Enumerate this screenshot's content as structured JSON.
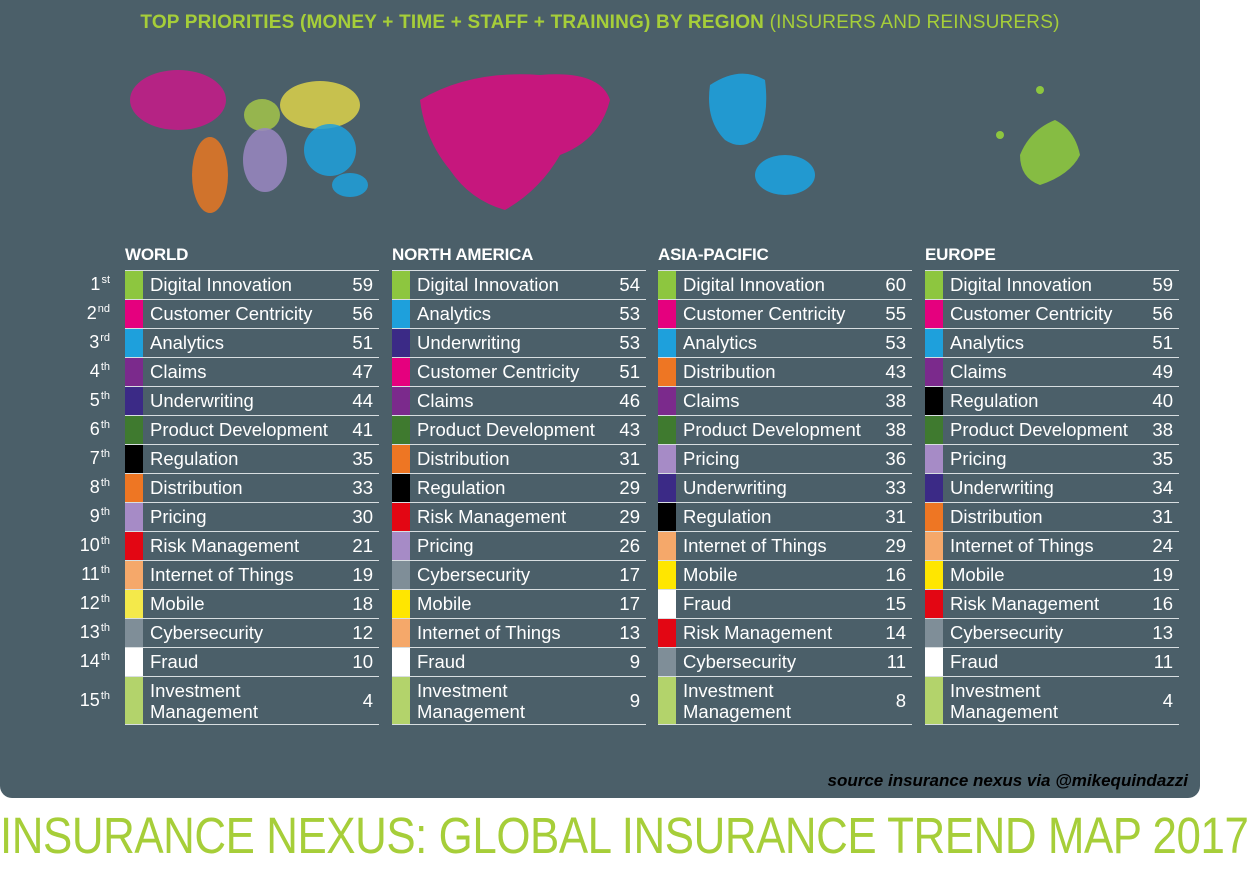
{
  "header": {
    "title_strong": "TOP PRIORITIES (MONEY + TIME + STAFF + TRAINING) BY REGION",
    "title_light": "(INSURERS AND REINSURERS)"
  },
  "colors": {
    "background_panel": "#4b5f69",
    "accent_green": "#a6ce39",
    "world_map_colors": [
      "#c8198a",
      "#e87722",
      "#a3c44a",
      "#ddd24a",
      "#9a87c2",
      "#1ea0dc"
    ],
    "north_america_map": "#d4107f",
    "asia_pacific_map": "#1ea0dc",
    "europe_map": "#8dc63f"
  },
  "ranks": [
    {
      "n": "1",
      "suffix": "st"
    },
    {
      "n": "2",
      "suffix": "nd"
    },
    {
      "n": "3",
      "suffix": "rd"
    },
    {
      "n": "4",
      "suffix": "th"
    },
    {
      "n": "5",
      "suffix": "th"
    },
    {
      "n": "6",
      "suffix": "th"
    },
    {
      "n": "7",
      "suffix": "th"
    },
    {
      "n": "8",
      "suffix": "th"
    },
    {
      "n": "9",
      "suffix": "th"
    },
    {
      "n": "10",
      "suffix": "th"
    },
    {
      "n": "11",
      "suffix": "th"
    },
    {
      "n": "12",
      "suffix": "th"
    },
    {
      "n": "13",
      "suffix": "th"
    },
    {
      "n": "14",
      "suffix": "th"
    },
    {
      "n": "15",
      "suffix": "th"
    }
  ],
  "regions": [
    {
      "name": "WORLD",
      "rows": [
        {
          "label": "Digital Innovation",
          "score": "59",
          "color": "#8dc63f"
        },
        {
          "label": "Customer Centricity",
          "score": "56",
          "color": "#e5007e"
        },
        {
          "label": "Analytics",
          "score": "51",
          "color": "#1ea0dc"
        },
        {
          "label": "Claims",
          "score": "47",
          "color": "#7b2a8c"
        },
        {
          "label": "Underwriting",
          "score": "44",
          "color": "#3b2a86"
        },
        {
          "label": "Product Development",
          "score": "41",
          "color": "#3f7a2f"
        },
        {
          "label": "Regulation",
          "score": "35",
          "color": "#000000"
        },
        {
          "label": "Distribution",
          "score": "33",
          "color": "#ee7623"
        },
        {
          "label": "Pricing",
          "score": "30",
          "color": "#a68bc6"
        },
        {
          "label": "Risk Management",
          "score": "21",
          "color": "#e30613"
        },
        {
          "label": "Internet of Things",
          "score": "19",
          "color": "#f5a86a"
        },
        {
          "label": "Mobile",
          "score": "18",
          "color": "#f4e94a"
        },
        {
          "label": "Cybersecurity",
          "score": "12",
          "color": "#7f8e98"
        },
        {
          "label": "Fraud",
          "score": "10",
          "color": "#ffffff"
        },
        {
          "label": "Investment Management",
          "score": "4",
          "color": "#b3d36b"
        }
      ]
    },
    {
      "name": "NORTH AMERICA",
      "rows": [
        {
          "label": "Digital Innovation",
          "score": "54",
          "color": "#8dc63f"
        },
        {
          "label": "Analytics",
          "score": "53",
          "color": "#1ea0dc"
        },
        {
          "label": "Underwriting",
          "score": "53",
          "color": "#3b2a86"
        },
        {
          "label": "Customer Centricity",
          "score": "51",
          "color": "#e5007e"
        },
        {
          "label": "Claims",
          "score": "46",
          "color": "#7b2a8c"
        },
        {
          "label": "Product Development",
          "score": "43",
          "color": "#3f7a2f"
        },
        {
          "label": "Distribution",
          "score": "31",
          "color": "#ee7623"
        },
        {
          "label": "Regulation",
          "score": "29",
          "color": "#000000"
        },
        {
          "label": "Risk Management",
          "score": "29",
          "color": "#e30613"
        },
        {
          "label": "Pricing",
          "score": "26",
          "color": "#a68bc6"
        },
        {
          "label": "Cybersecurity",
          "score": "17",
          "color": "#7f8e98"
        },
        {
          "label": "Mobile",
          "score": "17",
          "color": "#ffe600"
        },
        {
          "label": "Internet of Things",
          "score": "13",
          "color": "#f5a86a"
        },
        {
          "label": "Fraud",
          "score": "9",
          "color": "#ffffff"
        },
        {
          "label": "Investment Management",
          "score": "9",
          "color": "#b3d36b"
        }
      ]
    },
    {
      "name": "ASIA-PACIFIC",
      "rows": [
        {
          "label": "Digital Innovation",
          "score": "60",
          "color": "#8dc63f"
        },
        {
          "label": "Customer Centricity",
          "score": "55",
          "color": "#e5007e"
        },
        {
          "label": "Analytics",
          "score": "53",
          "color": "#1ea0dc"
        },
        {
          "label": "Distribution",
          "score": "43",
          "color": "#ee7623"
        },
        {
          "label": "Claims",
          "score": "38",
          "color": "#7b2a8c"
        },
        {
          "label": "Product Development",
          "score": "38",
          "color": "#3f7a2f"
        },
        {
          "label": "Pricing",
          "score": "36",
          "color": "#a68bc6"
        },
        {
          "label": "Underwriting",
          "score": "33",
          "color": "#3b2a86"
        },
        {
          "label": "Regulation",
          "score": "31",
          "color": "#000000"
        },
        {
          "label": "Internet of Things",
          "score": "29",
          "color": "#f5a86a"
        },
        {
          "label": "Mobile",
          "score": "16",
          "color": "#ffe600"
        },
        {
          "label": "Fraud",
          "score": "15",
          "color": "#ffffff"
        },
        {
          "label": "Risk Management",
          "score": "14",
          "color": "#e30613"
        },
        {
          "label": "Cybersecurity",
          "score": "11",
          "color": "#7f8e98"
        },
        {
          "label": "Investment Management",
          "score": "8",
          "color": "#b3d36b"
        }
      ]
    },
    {
      "name": "EUROPE",
      "rows": [
        {
          "label": "Digital Innovation",
          "score": "59",
          "color": "#8dc63f"
        },
        {
          "label": "Customer Centricity",
          "score": "56",
          "color": "#e5007e"
        },
        {
          "label": "Analytics",
          "score": "51",
          "color": "#1ea0dc"
        },
        {
          "label": "Claims",
          "score": "49",
          "color": "#7b2a8c"
        },
        {
          "label": "Regulation",
          "score": "40",
          "color": "#000000"
        },
        {
          "label": "Product Development",
          "score": "38",
          "color": "#3f7a2f"
        },
        {
          "label": "Pricing",
          "score": "35",
          "color": "#a68bc6"
        },
        {
          "label": "Underwriting",
          "score": "34",
          "color": "#3b2a86"
        },
        {
          "label": "Distribution",
          "score": "31",
          "color": "#ee7623"
        },
        {
          "label": "Internet of Things",
          "score": "24",
          "color": "#f5a86a"
        },
        {
          "label": "Mobile",
          "score": "19",
          "color": "#ffe600"
        },
        {
          "label": "Risk Management",
          "score": "16",
          "color": "#e30613"
        },
        {
          "label": "Cybersecurity",
          "score": "13",
          "color": "#7f8e98"
        },
        {
          "label": "Fraud",
          "score": "11",
          "color": "#ffffff"
        },
        {
          "label": "Investment Management",
          "score": "4",
          "color": "#b3d36b"
        }
      ]
    }
  ],
  "source": "source insurance nexus via @mikequindazzi",
  "footer": "INSURANCE NEXUS: GLOBAL INSURANCE TREND MAP 2017"
}
